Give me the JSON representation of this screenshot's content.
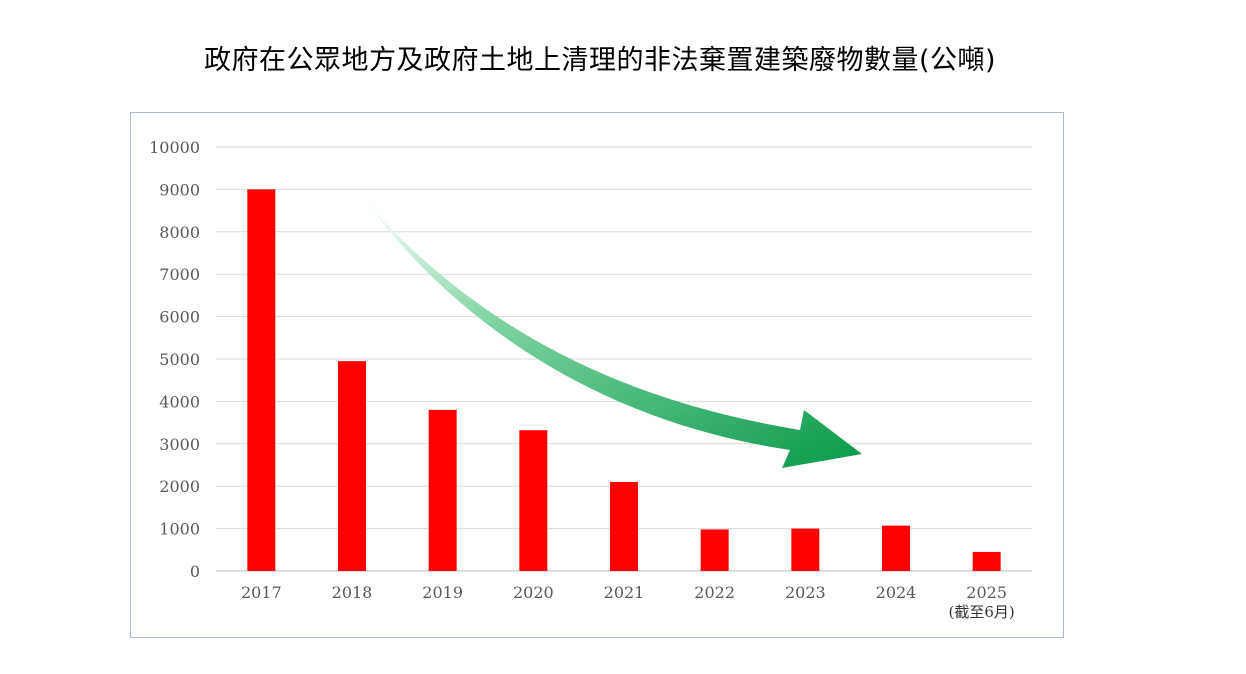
{
  "chart_data": {
    "type": "bar",
    "title": "政府在公眾地方及政府土地上清理的非法棄置建築廢物數量(公噸)",
    "categories": [
      "2017",
      "2018",
      "2019",
      "2020",
      "2021",
      "2022",
      "2023",
      "2024",
      "2025"
    ],
    "category_note": "(截至6月)",
    "values": [
      9000,
      4950,
      3800,
      3320,
      2100,
      980,
      1000,
      1070,
      450
    ],
    "ylim": [
      0,
      10000
    ],
    "yticks": [
      0,
      1000,
      2000,
      3000,
      4000,
      5000,
      6000,
      7000,
      8000,
      9000,
      10000
    ],
    "grid": true,
    "legend": "none",
    "colors": {
      "bar": "#ff0000",
      "grid": "#d9d9d9",
      "arrow": "#1aa05a",
      "frame": "#a9b9d6"
    },
    "annotation": "trend-arrow-down"
  }
}
